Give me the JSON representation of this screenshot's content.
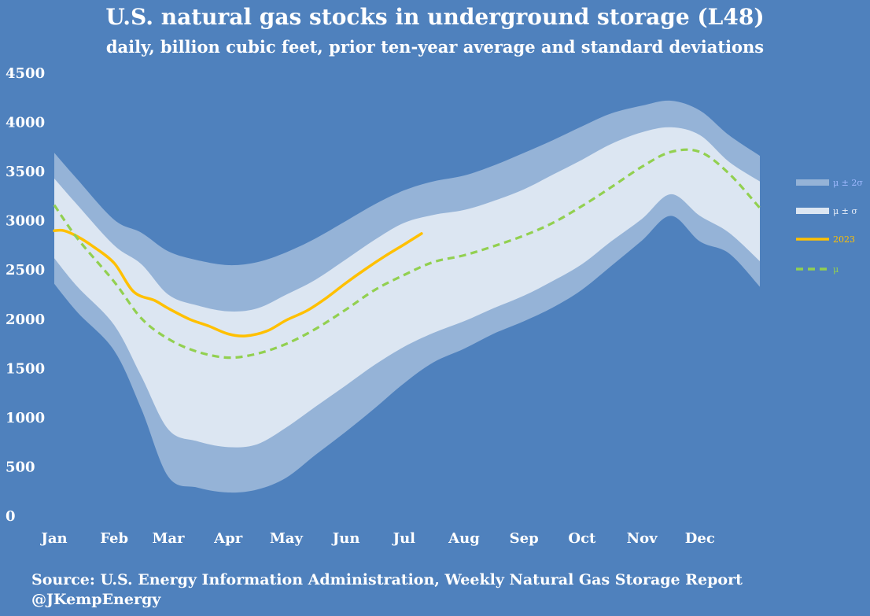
{
  "chart_data": {
    "type": "area",
    "title": "U.S. natural gas stocks in underground storage (L48)",
    "subtitle": "daily, billion cubic feet, prior ten-year average and standard deviations",
    "source": "Source: U.S. Energy Information Administration, Weekly Natural Gas Storage Report",
    "credit": "@JKempEnergy",
    "ylim": [
      0,
      4500
    ],
    "y_ticks": [
      "4500",
      "4000",
      "3500",
      "3000",
      "2500",
      "2000",
      "1500",
      "1000",
      "500",
      "0"
    ],
    "x_range_days": [
      1,
      366
    ],
    "x_ticks": [
      {
        "label": "Jan",
        "day": 1
      },
      {
        "label": "Feb",
        "day": 32
      },
      {
        "label": "Mar",
        "day": 60
      },
      {
        "label": "Apr",
        "day": 91
      },
      {
        "label": "May",
        "day": 121
      },
      {
        "label": "Jun",
        "day": 152
      },
      {
        "label": "Jul",
        "day": 182
      },
      {
        "label": "Aug",
        "day": 213
      },
      {
        "label": "Sep",
        "day": 244
      },
      {
        "label": "Oct",
        "day": 274
      },
      {
        "label": "Nov",
        "day": 305
      },
      {
        "label": "Dec",
        "day": 335
      }
    ],
    "grid": false,
    "legend_position": "right",
    "series": [
      {
        "name": "μ ± 2σ",
        "kind": "band",
        "color": "#95b3d7",
        "x": [
          1,
          13,
          32,
          46,
          60,
          75,
          91,
          106,
          121,
          136,
          152,
          167,
          182,
          197,
          213,
          228,
          244,
          259,
          274,
          289,
          305,
          320,
          335,
          350,
          366
        ],
        "upper": [
          3690,
          3420,
          3010,
          2880,
          2690,
          2600,
          2550,
          2580,
          2680,
          2820,
          3000,
          3170,
          3310,
          3400,
          3460,
          3560,
          3690,
          3820,
          3960,
          4090,
          4170,
          4220,
          4120,
          3870,
          3660
        ],
        "lower": [
          2360,
          2070,
          1680,
          1090,
          400,
          290,
          240,
          270,
          390,
          620,
          860,
          1100,
          1350,
          1560,
          1700,
          1850,
          1980,
          2120,
          2300,
          2540,
          2800,
          3050,
          2790,
          2670,
          2330
        ]
      },
      {
        "name": "μ ± σ",
        "kind": "band",
        "color": "#dce6f2",
        "x": [
          1,
          13,
          32,
          46,
          60,
          75,
          91,
          106,
          121,
          136,
          152,
          167,
          182,
          197,
          213,
          228,
          244,
          259,
          274,
          289,
          305,
          320,
          335,
          350,
          366
        ],
        "upper": [
          3430,
          3160,
          2750,
          2560,
          2250,
          2140,
          2080,
          2110,
          2250,
          2400,
          2610,
          2810,
          2980,
          3060,
          3110,
          3200,
          3320,
          3470,
          3620,
          3780,
          3900,
          3950,
          3870,
          3600,
          3400
        ],
        "lower": [
          2620,
          2330,
          1940,
          1420,
          880,
          760,
          700,
          730,
          900,
          1110,
          1330,
          1540,
          1720,
          1860,
          1980,
          2110,
          2240,
          2390,
          2560,
          2790,
          3020,
          3270,
          3050,
          2880,
          2590
        ]
      },
      {
        "name": "2023",
        "kind": "line",
        "color": "#ffc000",
        "x": [
          1,
          6,
          13,
          21,
          32,
          42,
          53,
          60,
          71,
          81,
          91,
          100,
          111,
          121,
          132,
          142,
          152,
          162,
          172,
          182,
          191
        ],
        "values": [
          2900,
          2900,
          2840,
          2740,
          2570,
          2280,
          2190,
          2110,
          2000,
          1930,
          1850,
          1830,
          1880,
          1990,
          2090,
          2220,
          2370,
          2510,
          2640,
          2760,
          2870
        ]
      },
      {
        "name": "μ",
        "kind": "line",
        "dashed": true,
        "color": "#92d050",
        "x": [
          1,
          13,
          32,
          46,
          60,
          75,
          91,
          106,
          121,
          136,
          152,
          167,
          182,
          197,
          213,
          228,
          244,
          259,
          274,
          289,
          305,
          320,
          335,
          350,
          366
        ],
        "values": [
          3160,
          2820,
          2380,
          2010,
          1800,
          1670,
          1610,
          1650,
          1750,
          1900,
          2100,
          2300,
          2450,
          2580,
          2650,
          2740,
          2850,
          2980,
          3150,
          3340,
          3550,
          3700,
          3700,
          3480,
          3130
        ]
      }
    ]
  }
}
